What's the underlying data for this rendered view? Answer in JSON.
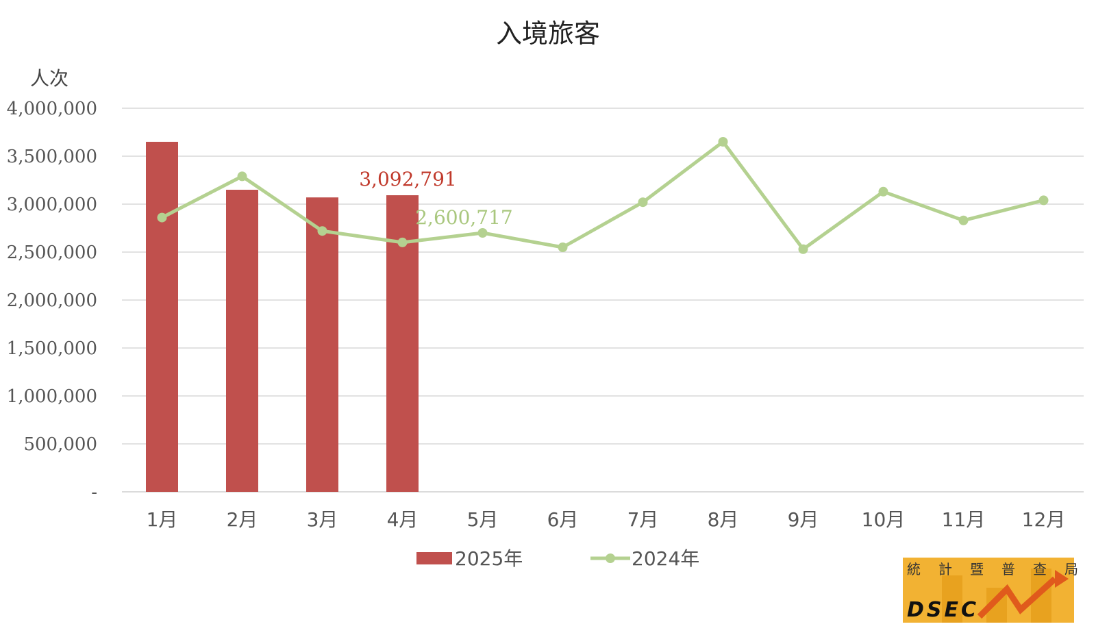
{
  "chart_data": {
    "type": "bar",
    "title": "入境旅客",
    "ylabel": "人次",
    "xlabel": "",
    "ylim": [
      0,
      4000000
    ],
    "yticks": [
      0,
      500000,
      1000000,
      1500000,
      2000000,
      2500000,
      3000000,
      3500000,
      4000000
    ],
    "ytick_labels": [
      "-",
      "500,000",
      "1,000,000",
      "1,500,000",
      "2,000,000",
      "2,500,000",
      "3,000,000",
      "3,500,000",
      "4,000,000"
    ],
    "categories": [
      "1月",
      "2月",
      "3月",
      "4月",
      "5月",
      "6月",
      "7月",
      "8月",
      "9月",
      "10月",
      "11月",
      "12月"
    ],
    "series": [
      {
        "name": "2025年",
        "type": "bar",
        "color": "#c0504d",
        "values": [
          3650000,
          3150000,
          3070000,
          3092791,
          null,
          null,
          null,
          null,
          null,
          null,
          null,
          null
        ],
        "data_label": {
          "index": 3,
          "text": "3,092,791"
        }
      },
      {
        "name": "2024年",
        "type": "line",
        "color": "#b4d190",
        "values": [
          2860000,
          3290000,
          2720000,
          2600717,
          2700000,
          2550000,
          3020000,
          3650000,
          2530000,
          3130000,
          2830000,
          3040000
        ],
        "data_label": {
          "index": 3,
          "text": "2,600,717"
        }
      }
    ],
    "grid": true,
    "legend": "bottom-center"
  },
  "logo": {
    "chars": [
      "統",
      "計",
      "暨",
      "普",
      "查",
      "局"
    ],
    "abbr": "DSEC"
  }
}
